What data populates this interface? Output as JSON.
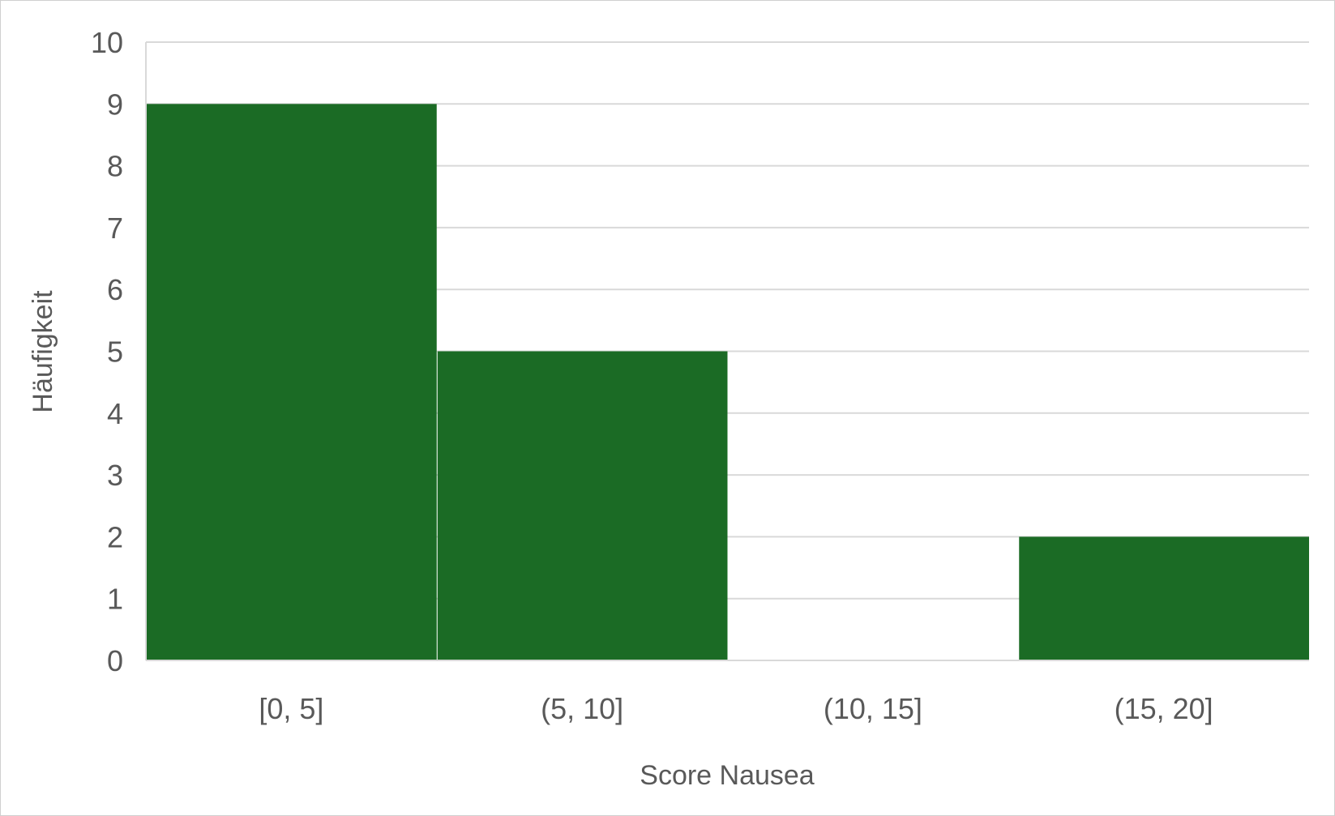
{
  "chart_data": {
    "type": "bar",
    "categories": [
      "[0, 5]",
      "(5, 10]",
      "(10, 15]",
      "(15, 20]"
    ],
    "values": [
      9,
      5,
      0,
      2
    ],
    "xlabel": "Score Nausea",
    "ylabel": "Häufigkeit",
    "ylim": [
      0,
      10
    ],
    "yticks": [
      0,
      1,
      2,
      3,
      4,
      5,
      6,
      7,
      8,
      9,
      10
    ],
    "grid": true,
    "legend": "none",
    "bar_color": "#1b6b25",
    "gridline_color": "#d9d9d9",
    "text_color": "#595959"
  }
}
